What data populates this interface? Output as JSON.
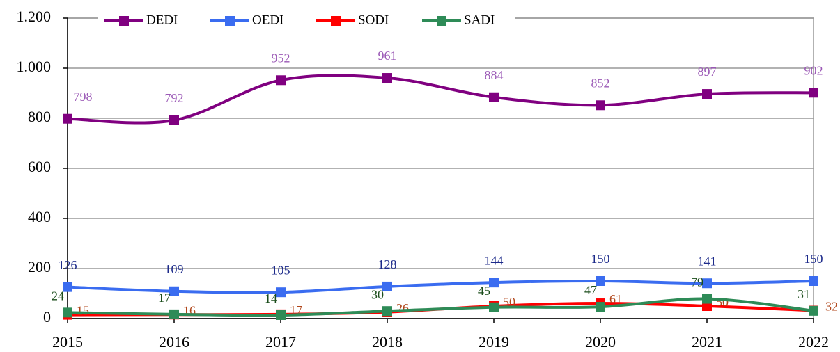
{
  "chart_data": {
    "type": "line",
    "categories": [
      "2015",
      "2016",
      "2017",
      "2018",
      "2019",
      "2020",
      "2021",
      "2022"
    ],
    "series": [
      {
        "name": "DEDI",
        "color": "#800080",
        "label_color": "#9b59b6",
        "values": [
          798,
          792,
          952,
          961,
          884,
          852,
          897,
          902
        ]
      },
      {
        "name": "OEDI",
        "color": "#3a6cf0",
        "label_color": "#1c2a8a",
        "values": [
          126,
          109,
          105,
          128,
          144,
          150,
          141,
          150
        ]
      },
      {
        "name": "SODI",
        "color": "#ff0000",
        "label_color": "#b0461a",
        "values": [
          15,
          16,
          17,
          26,
          50,
          61,
          50,
          32
        ]
      },
      {
        "name": "SADI",
        "color": "#2e8b57",
        "label_color": "#1b4d1b",
        "values": [
          24,
          17,
          14,
          30,
          45,
          47,
          79,
          31
        ]
      }
    ],
    "ylim": [
      0,
      1200
    ],
    "yticks": [
      0,
      200,
      400,
      600,
      800,
      {
        "value": 1000,
        "label": "1.000"
      },
      {
        "value": 1200,
        "label": "1.200"
      }
    ],
    "grid": true,
    "legend": "top",
    "smooth": true
  }
}
